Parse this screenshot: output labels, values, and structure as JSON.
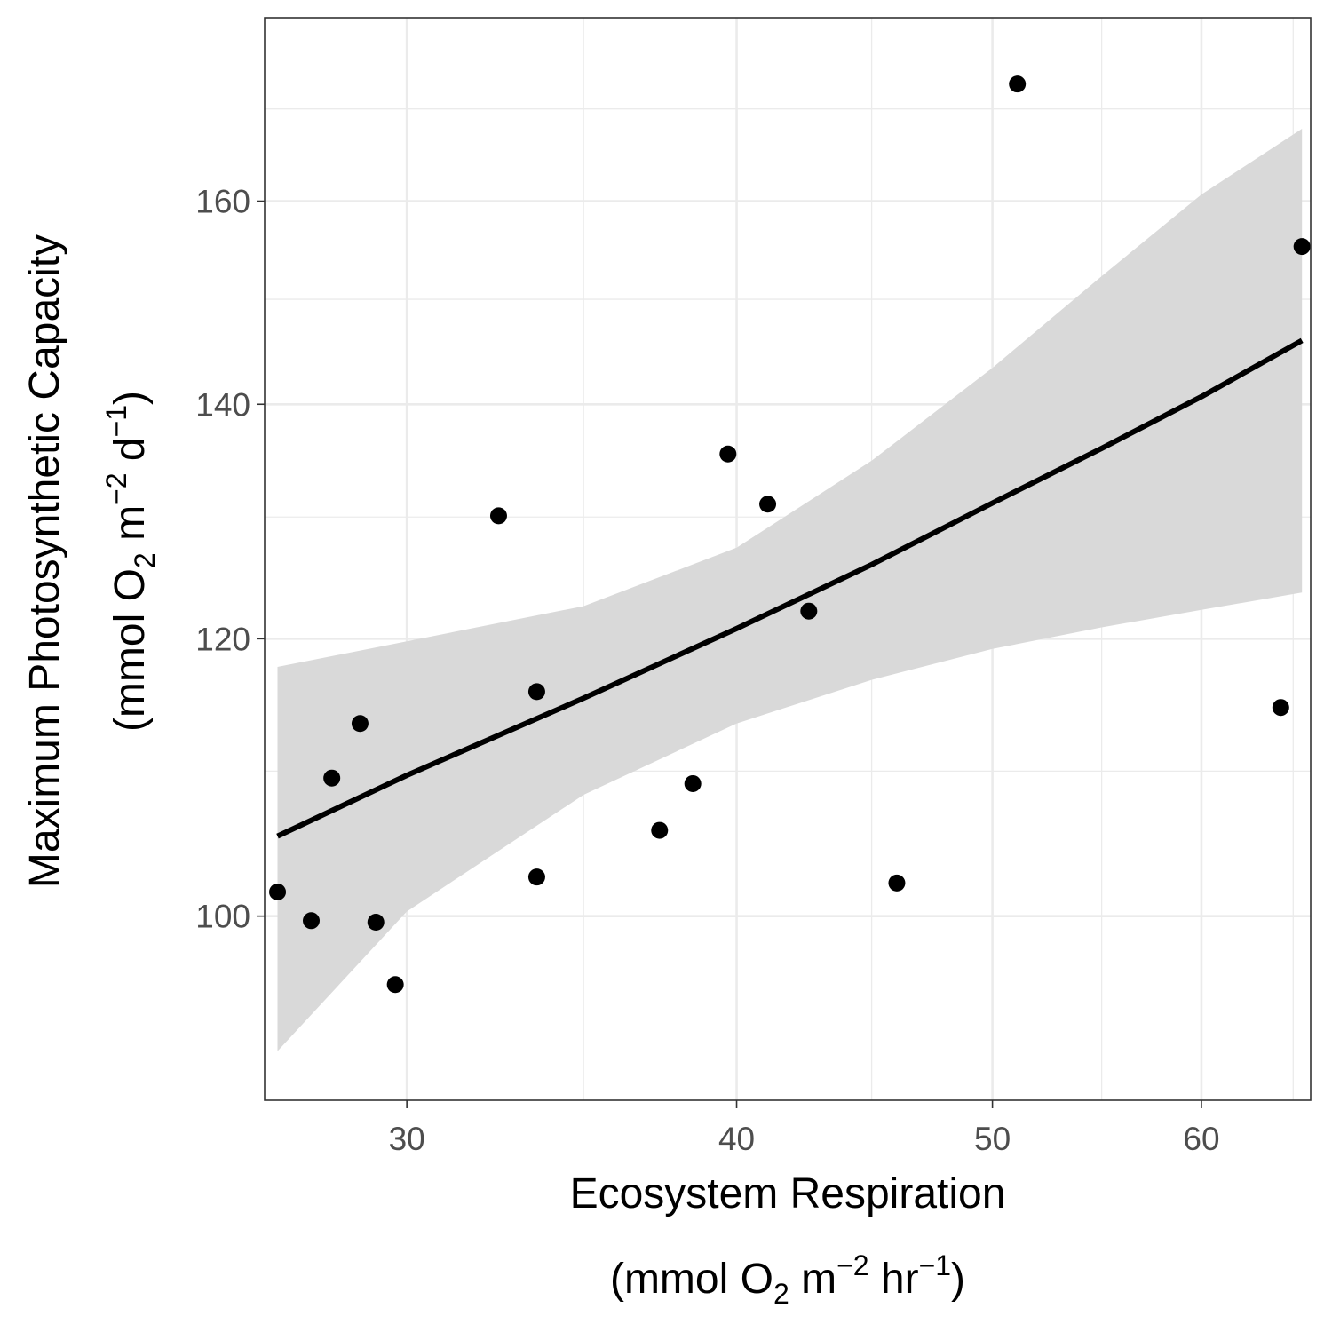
{
  "chart_data": {
    "type": "scatter",
    "title": "",
    "xlabel": {
      "line1": "Ecosystem Respiration",
      "line2": {
        "open": "(mmol O",
        "sub": "2",
        "mid": " m",
        "sup1": "−2",
        "mid2": " hr",
        "sup2": "−1",
        "close": ")"
      }
    },
    "ylabel": {
      "line1": "Maximum Photosynthetic Capacity",
      "line2": {
        "open": "(mmol O",
        "sub": "2",
        "mid": " m",
        "sup1": "−2",
        "mid2": " d",
        "sup2": "−1",
        "close": ")"
      }
    },
    "x_scale": "log",
    "y_scale": "log",
    "xlim": [
      26.5,
      66
    ],
    "ylim": [
      88.6,
      180.5
    ],
    "x_ticks": [
      30,
      40,
      50,
      60
    ],
    "y_ticks": [
      100,
      120,
      140,
      160
    ],
    "x_minor": [
      35,
      45,
      55,
      65
    ],
    "y_minor": [
      110,
      130,
      150,
      170
    ],
    "grid": true,
    "points": [
      {
        "x": 26.8,
        "y": 101.6
      },
      {
        "x": 27.6,
        "y": 99.7
      },
      {
        "x": 28.1,
        "y": 109.5
      },
      {
        "x": 28.8,
        "y": 113.5
      },
      {
        "x": 29.2,
        "y": 99.6
      },
      {
        "x": 29.7,
        "y": 95.6
      },
      {
        "x": 32.5,
        "y": 130.1
      },
      {
        "x": 33.6,
        "y": 102.6
      },
      {
        "x": 33.6,
        "y": 115.9
      },
      {
        "x": 37.4,
        "y": 105.8
      },
      {
        "x": 38.5,
        "y": 109.1
      },
      {
        "x": 39.7,
        "y": 135.5
      },
      {
        "x": 41.1,
        "y": 131.1
      },
      {
        "x": 42.6,
        "y": 122.2
      },
      {
        "x": 46.0,
        "y": 102.2
      },
      {
        "x": 51.1,
        "y": 172.8
      },
      {
        "x": 64.3,
        "y": 114.7
      },
      {
        "x": 65.5,
        "y": 155.3
      }
    ],
    "fit": {
      "color": "#000000",
      "ribbon_color": "#d9d9d9",
      "x": [
        26.8,
        30,
        35,
        40,
        45,
        50,
        55,
        60,
        65.5
      ],
      "y": [
        105.4,
        109.7,
        115.4,
        120.8,
        126.0,
        131.2,
        136.0,
        140.7,
        146.0
      ],
      "lower": [
        91.5,
        100.3,
        108.3,
        113.5,
        116.8,
        119.2,
        120.9,
        122.3,
        123.7
      ],
      "upper": [
        117.8,
        119.8,
        122.6,
        127.4,
        134.9,
        143.4,
        152.3,
        160.7,
        167.8
      ]
    }
  }
}
